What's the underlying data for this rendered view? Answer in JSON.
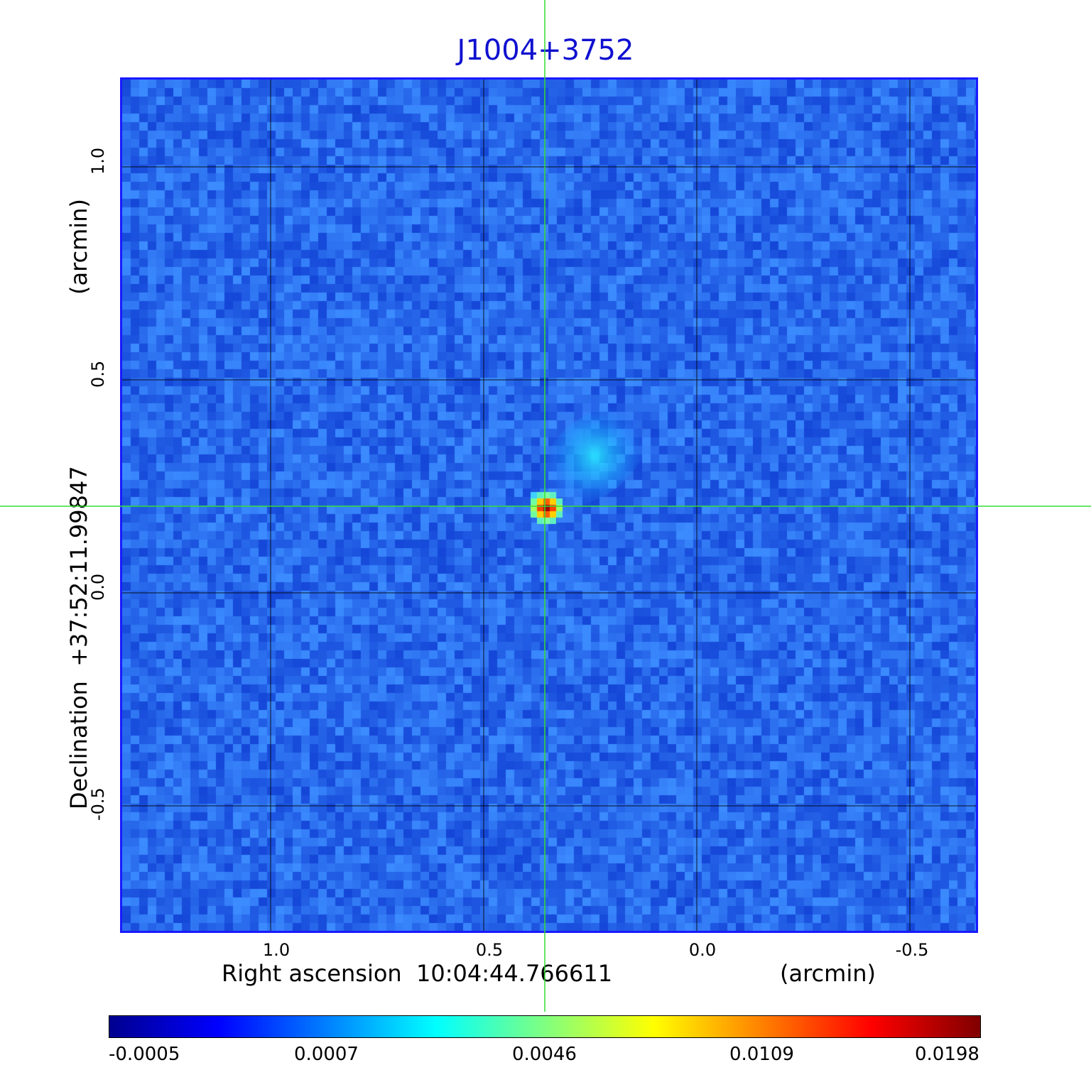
{
  "title": "J1004+3752",
  "axes": {
    "x_label": "Right ascension  10:04:44.766611",
    "x_unit": "(arcmin)",
    "y_label": "Declination  +37:52:11.99847",
    "y_unit": "(arcmin)",
    "x_ticks": [
      "1.0",
      "0.5",
      "0.0",
      "-0.5"
    ],
    "y_ticks": [
      "1.0",
      "0.5",
      "0.0",
      "-0.5"
    ]
  },
  "colorbar": {
    "labels": [
      "-0.0005",
      "0.0007",
      "0.0046",
      "0.0109",
      "0.0198"
    ],
    "colormap": [
      "#00008f",
      "#0000ff",
      "#0080ff",
      "#00ffff",
      "#80ff80",
      "#ffff00",
      "#ff8000",
      "#ff0000",
      "#800000"
    ]
  },
  "colors": {
    "background_field": "#2a5ef0",
    "crosshair": "#33dd33",
    "title": "#1010d0"
  }
}
